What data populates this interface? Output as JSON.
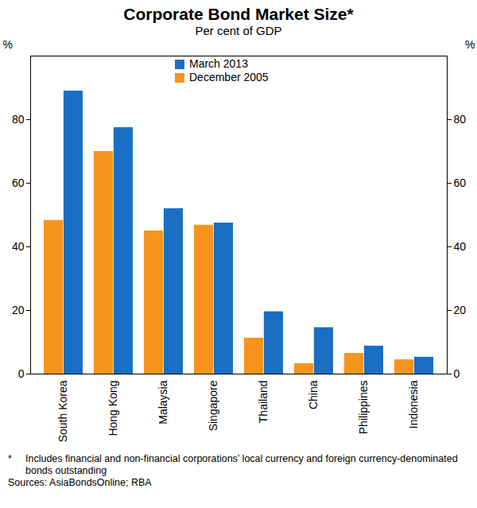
{
  "chart_data": {
    "type": "bar",
    "title": "Corporate Bond Market Size*",
    "subtitle": "Per cent of GDP",
    "categories": [
      "South Korea",
      "Hong Kong",
      "Malaysia",
      "Singapore",
      "Thailand",
      "China",
      "Philippines",
      "Indonesia"
    ],
    "series": [
      {
        "name": "March 2013",
        "color": "#1a6fc4",
        "values": [
          89,
          77.5,
          52,
          47.5,
          19.6,
          14.6,
          8.8,
          5.3
        ]
      },
      {
        "name": "December 2005",
        "color": "#f7941d",
        "values": [
          48.3,
          70,
          45,
          46.8,
          11.3,
          3.3,
          6.5,
          4.5
        ]
      }
    ],
    "y_label": "%",
    "ylim": [
      0,
      100
    ],
    "yticks": [
      0,
      20,
      40,
      60,
      80
    ],
    "grid": false,
    "legend": "top",
    "footnote_marker": "*",
    "footnote": "Includes financial and non-financial corporations’ local currency and foreign currency-denominated bonds outstanding",
    "source": "Sources: AsiaBondsOnline; RBA"
  }
}
